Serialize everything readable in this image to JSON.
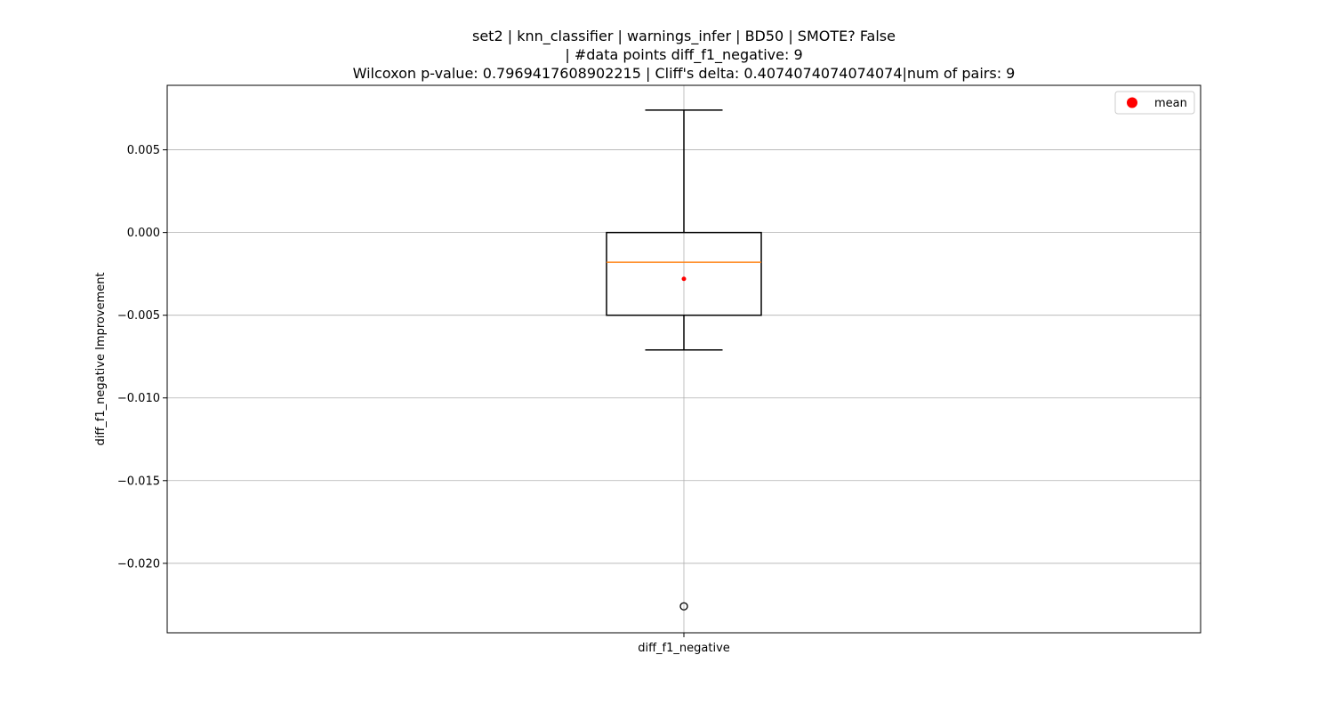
{
  "chart_data": {
    "type": "box",
    "title_lines": [
      "set2 | knn_classifier | warnings_infer | BD50 | SMOTE? False",
      "| #data points diff_f1_negative: 9",
      "Wilcoxon p-value: 0.7969417608902215 | Cliff's delta: 0.4074074074074074|num of pairs: 9"
    ],
    "xlabel": "",
    "ylabel": "diff_f1_negative Improvement",
    "categories": [
      "diff_f1_negative"
    ],
    "ylim": [
      -0.0242,
      0.0089
    ],
    "yticks": [
      0.005,
      0.0,
      -0.005,
      -0.01,
      -0.015,
      -0.02
    ],
    "ytick_labels": [
      "0.005",
      "0.000",
      "−0.005",
      "−0.010",
      "−0.015",
      "−0.020"
    ],
    "grid": true,
    "boxes": [
      {
        "category": "diff_f1_negative",
        "whisker_low": -0.0071,
        "q1": -0.005,
        "median": -0.0018,
        "q3": 0.0,
        "whisker_high": 0.0074,
        "mean": -0.0028,
        "outliers": [
          -0.0226
        ]
      }
    ],
    "legend": {
      "position": "top-right",
      "entries": [
        {
          "label": "mean",
          "marker": "circle"
        }
      ]
    },
    "colors": {
      "box": "#000000",
      "median": "#ff7f0e",
      "mean": "#ff0000",
      "grid": "#b0b0b0",
      "outlier": "#000000"
    }
  }
}
